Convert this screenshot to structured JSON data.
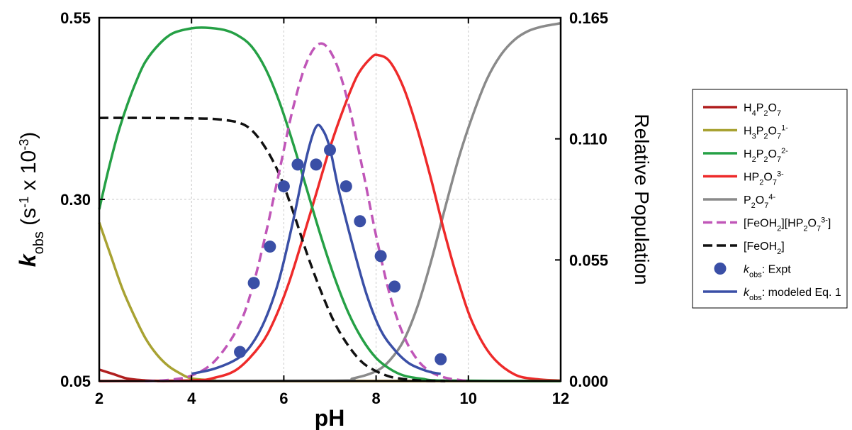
{
  "chart_data": {
    "type": "line",
    "xlabel": "pH",
    "ylabel_left": {
      "symbol": "k",
      "sub": "obs",
      "rest": " (s",
      "sup1": "-1",
      "mid": " x 10",
      "sup2": "-3",
      "close": ")"
    },
    "ylabel_right": "Relative Population",
    "xlim": [
      2,
      12
    ],
    "ylim_left": [
      0.05,
      0.55
    ],
    "ylim_right": [
      0.0,
      0.165
    ],
    "x_ticks": [
      "2",
      "4",
      "6",
      "8",
      "10",
      "12"
    ],
    "y_left_ticks": [
      "0.05",
      "0.30",
      "0.55"
    ],
    "y_right_ticks": [
      "0.000",
      "0.055",
      "0.110",
      "0.165"
    ],
    "grid": true,
    "colors": {
      "h4p2o7": "#b01e1e",
      "h3p2o7": "#a8a232",
      "h2p2o7": "#25a045",
      "hp2o7": "#ee2a2a",
      "p2o7": "#8a8a8a",
      "complex": "#c056b8",
      "feoh2": "#111111",
      "expt": "#3a4fa6",
      "model": "#3a4fa6"
    },
    "series": [
      {
        "key": "h4p2o7",
        "axis": "right",
        "dash": false,
        "x": [
          2,
          2.3,
          2.6,
          3,
          3.5,
          4,
          12
        ],
        "y": [
          0.0052,
          0.0032,
          0.0012,
          0.0003,
          0.0,
          0.0,
          0.0
        ]
      },
      {
        "key": "h3p2o7",
        "axis": "right",
        "dash": false,
        "x": [
          2,
          2.25,
          2.5,
          2.75,
          3,
          3.25,
          3.5,
          3.75,
          4,
          4.5,
          5,
          12
        ],
        "y": [
          0.072,
          0.057,
          0.042,
          0.03,
          0.0195,
          0.012,
          0.0068,
          0.0035,
          0.0012,
          0.0003,
          0.0,
          0.0
        ]
      },
      {
        "key": "h2p2o7",
        "axis": "right",
        "dash": false,
        "x": [
          2,
          2.2,
          2.4,
          2.6,
          2.8,
          3,
          3.3,
          3.6,
          4,
          4.3,
          4.7,
          5,
          5.3,
          5.6,
          5.9,
          6.2,
          6.5,
          6.8,
          7.1,
          7.4,
          7.7,
          8,
          8.3,
          8.6,
          9,
          9.5,
          12
        ],
        "y": [
          0.078,
          0.096,
          0.112,
          0.125,
          0.136,
          0.145,
          0.153,
          0.158,
          0.1602,
          0.1605,
          0.1595,
          0.157,
          0.152,
          0.142,
          0.127,
          0.108,
          0.087,
          0.066,
          0.047,
          0.031,
          0.019,
          0.0105,
          0.0055,
          0.0025,
          0.001,
          0.0002,
          0.0
        ]
      },
      {
        "key": "hp2o7",
        "axis": "right",
        "dash": false,
        "x": [
          2,
          4,
          4.5,
          5,
          5.5,
          5.8,
          6.1,
          6.4,
          6.7,
          7,
          7.3,
          7.6,
          7.9,
          8.05,
          8.3,
          8.6,
          8.9,
          9.2,
          9.5,
          9.8,
          10.1,
          10.5,
          11,
          11.5,
          12
        ],
        "y": [
          0.0,
          0.0003,
          0.0015,
          0.0055,
          0.0165,
          0.028,
          0.044,
          0.064,
          0.085,
          0.106,
          0.124,
          0.139,
          0.147,
          0.148,
          0.145,
          0.133,
          0.114,
          0.091,
          0.066,
          0.044,
          0.026,
          0.0115,
          0.003,
          0.0008,
          0.0002
        ]
      },
      {
        "key": "p2o7",
        "axis": "right",
        "dash": false,
        "x": [
          2,
          7,
          7.5,
          8,
          8.3,
          8.6,
          8.9,
          9.2,
          9.5,
          9.8,
          10.1,
          10.4,
          10.7,
          11,
          11.3,
          11.6,
          12
        ],
        "y": [
          0.0,
          0.0002,
          0.0012,
          0.0045,
          0.0095,
          0.0185,
          0.034,
          0.055,
          0.079,
          0.102,
          0.121,
          0.137,
          0.148,
          0.155,
          0.159,
          0.161,
          0.1625
        ]
      },
      {
        "key": "complex",
        "axis": "right",
        "dash": true,
        "x": [
          3,
          3.5,
          4,
          4.5,
          5,
          5.3,
          5.6,
          5.9,
          6.2,
          6.5,
          6.8,
          7.1,
          7.4,
          7.7,
          8,
          8.3,
          8.6,
          8.9,
          9.2,
          9.5,
          9.8,
          10
        ],
        "y": [
          0.0,
          0.0005,
          0.0025,
          0.009,
          0.024,
          0.041,
          0.066,
          0.095,
          0.124,
          0.145,
          0.1533,
          0.146,
          0.126,
          0.097,
          0.066,
          0.039,
          0.0205,
          0.0095,
          0.004,
          0.0015,
          0.0005,
          0.0
        ]
      },
      {
        "key": "feoh2",
        "axis": "right",
        "dash": true,
        "x": [
          2,
          3,
          4,
          4.5,
          5,
          5.3,
          5.6,
          5.9,
          6.2,
          6.5,
          6.8,
          7.1,
          7.4,
          7.7,
          8,
          8.3,
          8.6,
          8.9,
          9.2,
          9.5
        ],
        "y": [
          0.1195,
          0.1195,
          0.1193,
          0.119,
          0.1175,
          0.114,
          0.106,
          0.094,
          0.077,
          0.058,
          0.041,
          0.0265,
          0.016,
          0.0085,
          0.0045,
          0.002,
          0.0009,
          0.0003,
          0.0001,
          0.0
        ]
      },
      {
        "key": "model",
        "axis": "left",
        "dash": false,
        "x": [
          4,
          4.5,
          5,
          5.3,
          5.6,
          5.9,
          6.2,
          6.5,
          6.7,
          6.85,
          7,
          7.2,
          7.5,
          7.8,
          8.1,
          8.4,
          8.7,
          9,
          9.2,
          9.4
        ],
        "y": [
          0.06,
          0.067,
          0.081,
          0.1,
          0.135,
          0.19,
          0.27,
          0.36,
          0.4,
          0.395,
          0.37,
          0.31,
          0.235,
          0.168,
          0.12,
          0.093,
          0.075,
          0.066,
          0.062,
          0.06
        ]
      },
      {
        "key": "expt",
        "axis": "left",
        "type": "scatter",
        "x": [
          5.05,
          5.35,
          5.7,
          6.0,
          6.3,
          6.7,
          7.0,
          7.35,
          7.65,
          8.1,
          8.4,
          9.4
        ],
        "y": [
          0.09,
          0.185,
          0.235,
          0.318,
          0.348,
          0.348,
          0.368,
          0.318,
          0.27,
          0.222,
          0.18,
          0.08
        ]
      }
    ],
    "legend_position": "right",
    "legend": [
      {
        "key": "h4p2o7",
        "style": "line",
        "parts": [
          [
            "n",
            "H"
          ],
          [
            "sub",
            "4"
          ],
          [
            "n",
            "P"
          ],
          [
            "sub",
            "2"
          ],
          [
            "n",
            "O"
          ],
          [
            "sub",
            "7"
          ]
        ]
      },
      {
        "key": "h3p2o7",
        "style": "line",
        "parts": [
          [
            "n",
            "H"
          ],
          [
            "sub",
            "3"
          ],
          [
            "n",
            "P"
          ],
          [
            "sub",
            "2"
          ],
          [
            "n",
            "O"
          ],
          [
            "sub",
            "7"
          ],
          [
            "sup",
            "1-"
          ]
        ]
      },
      {
        "key": "h2p2o7",
        "style": "line",
        "parts": [
          [
            "n",
            "H"
          ],
          [
            "sub",
            "2"
          ],
          [
            "n",
            "P"
          ],
          [
            "sub",
            "2"
          ],
          [
            "n",
            "O"
          ],
          [
            "sub",
            "7"
          ],
          [
            "sup",
            "2-"
          ]
        ]
      },
      {
        "key": "hp2o7",
        "style": "line",
        "parts": [
          [
            "n",
            "HP"
          ],
          [
            "sub",
            "2"
          ],
          [
            "n",
            "O"
          ],
          [
            "sub",
            "7"
          ],
          [
            "sup",
            "3-"
          ]
        ]
      },
      {
        "key": "p2o7",
        "style": "line",
        "parts": [
          [
            "n",
            "P"
          ],
          [
            "sub",
            "2"
          ],
          [
            "n",
            "O"
          ],
          [
            "sub",
            "7"
          ],
          [
            "sup",
            "4-"
          ]
        ]
      },
      {
        "key": "complex",
        "style": "dash",
        "parts": [
          [
            "n",
            "[FeOH"
          ],
          [
            "sub",
            "2"
          ],
          [
            "n",
            "][HP"
          ],
          [
            "sub",
            "2"
          ],
          [
            "n",
            "O"
          ],
          [
            "sub",
            "7"
          ],
          [
            "sup",
            "3-"
          ],
          [
            "n",
            "]"
          ]
        ]
      },
      {
        "key": "feoh2",
        "style": "dash",
        "parts": [
          [
            "n",
            "[FeOH"
          ],
          [
            "sub",
            "2"
          ],
          [
            "n",
            "]"
          ]
        ]
      },
      {
        "key": "expt",
        "style": "dot",
        "parts": [
          [
            "it",
            "k"
          ],
          [
            "sub",
            "obs"
          ],
          [
            "n",
            ": Expt"
          ]
        ]
      },
      {
        "key": "model",
        "style": "line",
        "parts": [
          [
            "it",
            "k"
          ],
          [
            "sub",
            "obs"
          ],
          [
            "n",
            ": modeled Eq. 1"
          ]
        ]
      }
    ]
  }
}
